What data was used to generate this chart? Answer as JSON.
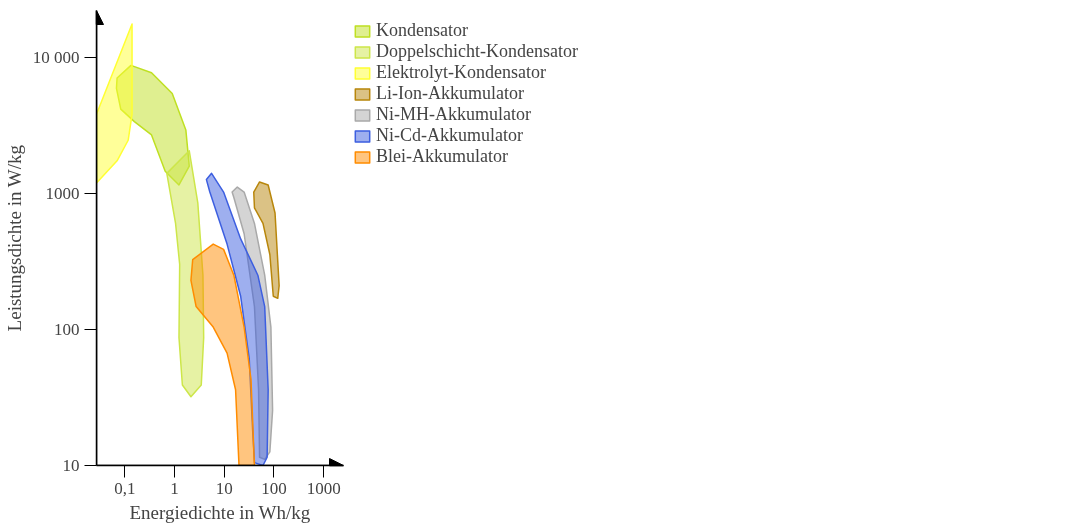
{
  "chart_data": {
    "type": "area",
    "xlabel": "Energiedichte in Wh/kg",
    "ylabel": "Leistungsdichte in W/kg",
    "log": "xy",
    "grid": false,
    "legend": "top right",
    "xlim": [
      0.027,
      2500
    ],
    "ylim": [
      10,
      22000
    ],
    "xticks": [
      {
        "value": 0.1,
        "label": "0,1"
      },
      1,
      10,
      100,
      1000
    ],
    "yticks": [
      10,
      100,
      1000,
      {
        "value": 10000,
        "label": "10 000"
      }
    ],
    "series": [
      {
        "name": "Kondensator",
        "color": "#bfe022",
        "x": [
          0.07,
          0.133,
          0.345,
          0.9,
          1.69,
          1.98,
          1.23,
          0.65,
          0.345,
          0.156,
          0.083,
          0.068
        ],
        "values": [
          7030,
          8690,
          7680,
          5410,
          2920,
          1580,
          1150,
          1450,
          2680,
          3360,
          4150,
          5900
        ]
      },
      {
        "name": "Doppelschicht-Kondensator",
        "color": "#cde64a",
        "x": [
          0.7,
          1.98,
          2.94,
          3.73,
          3.86,
          3.45,
          2.14,
          1.44,
          1.23,
          1.27,
          1.05
        ],
        "values": [
          1400,
          2050,
          850,
          250,
          87,
          39,
          32,
          39,
          87,
          300,
          600
        ]
      },
      {
        "name": "Elektrolyt-Kondensator",
        "color": "#ffff33",
        "x": [
          0.027,
          0.14,
          0.14,
          0.117,
          0.07,
          0.027
        ],
        "values": [
          3800,
          17500,
          3800,
          2450,
          1730,
          1190
        ]
      },
      {
        "name": "Li-Ion-Akkumulator",
        "color": "#b8860b",
        "x": [
          39.2,
          51.3,
          76.4,
          105,
          127,
          119,
          96.9,
          82.6,
          60.1,
          40.5
        ],
        "values": [
          1020,
          1210,
          1150,
          716,
          209,
          169,
          175,
          355,
          600,
          782
        ]
      },
      {
        "name": "Ni-MH-Akkumulator",
        "color": "#a9a9a9",
        "x": [
          14.4,
          18.3,
          25.1,
          40.5,
          65.1,
          86.7,
          93.8,
          82.6,
          65.1,
          51.3,
          49,
          40.5,
          25.1,
          15.6
        ],
        "values": [
          1020,
          1110,
          1020,
          600,
          250,
          104,
          25.4,
          12.6,
          11.1,
          11.5,
          36,
          147,
          504,
          931
        ]
      },
      {
        "name": "Ni-Cd-Akkumulator",
        "color": "#3d5fe0",
        "x": [
          4.38,
          5.56,
          9.7,
          21.4,
          47.4,
          65.1,
          76.4,
          72.8,
          60.1,
          40.5,
          37.3,
          31.8,
          21.4,
          11.4,
          5.13
        ],
        "values": [
          1260,
          1400,
          1020,
          462,
          250,
          147,
          36,
          11.5,
          10,
          10.5,
          17.9,
          61,
          175,
          423,
          1020
        ]
      },
      {
        "name": "Blei-Akkumulator",
        "color": "#ff8c00",
        "x": [
          2.32,
          6.0,
          9.7,
          15.6,
          25.1,
          34.5,
          40.5,
          19.8,
          16.9,
          11.4,
          6.0,
          2.72,
          2.14
        ],
        "values": [
          325,
          423,
          387,
          250,
          104,
          43,
          10,
          10,
          36,
          67,
          104,
          147,
          229
        ]
      }
    ]
  }
}
